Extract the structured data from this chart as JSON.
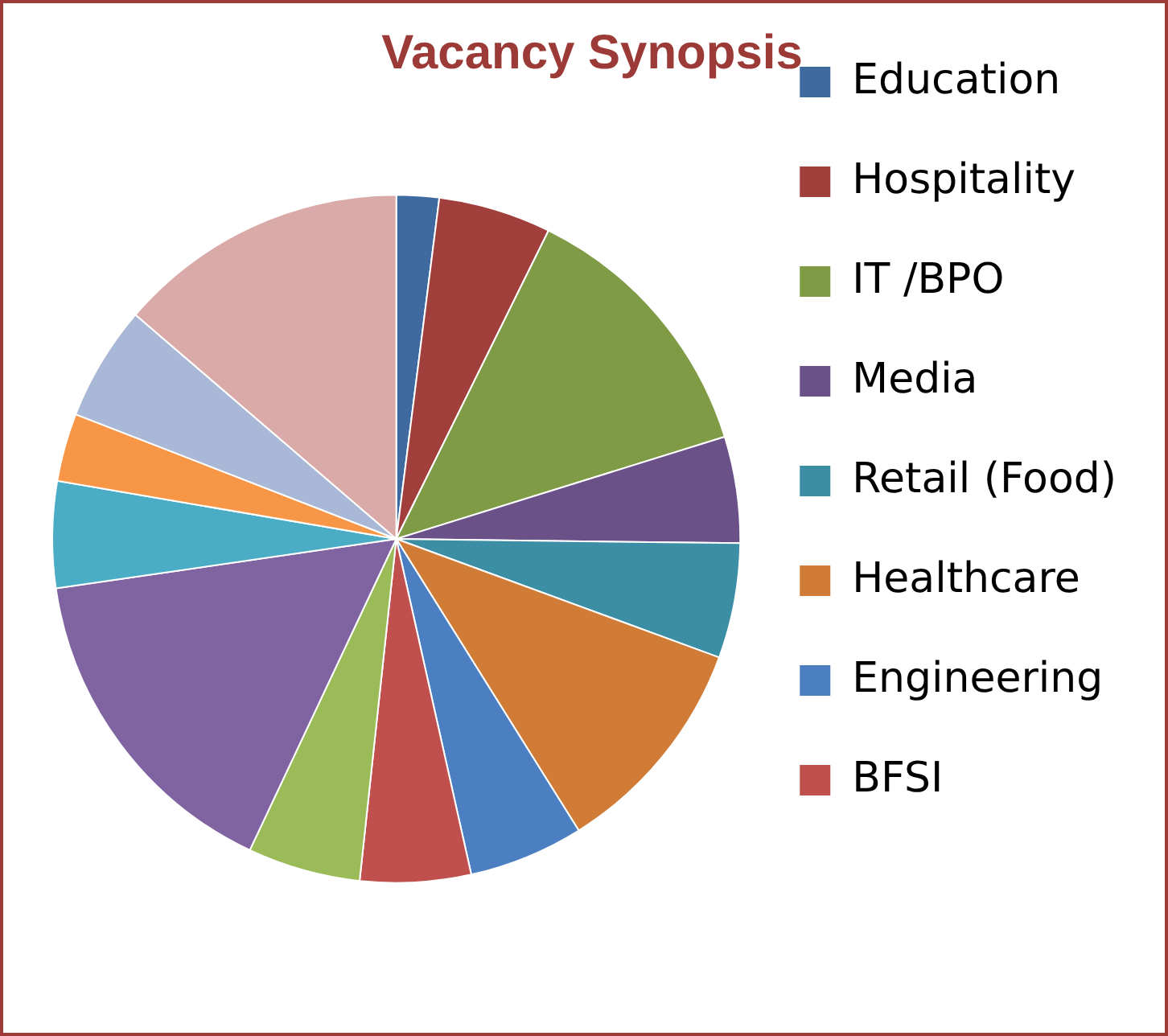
{
  "chart_data": {
    "type": "pie",
    "title": "Vacancy Synopsis",
    "categories": [
      "Education",
      "Hospitality",
      "IT /BPO",
      "Media",
      "Retail (Food)",
      "Healthcare",
      "Engineering",
      "BFSI",
      null,
      null,
      null,
      null,
      null,
      null
    ],
    "values": [
      2,
      5.3,
      12.9,
      5,
      5.4,
      10.5,
      5.4,
      5.2,
      5.3,
      15.7,
      5,
      3.2,
      5.4,
      13.7
    ],
    "colors": [
      "#3e6aa0",
      "#a03f3c",
      "#7f9b46",
      "#6a5289",
      "#3b8ea4",
      "#d07b36",
      "#4c7fc1",
      "#c0504d",
      "#9bbb59",
      "#8064a2",
      "#4bacc6",
      "#f79646",
      "#a9b8d6",
      "#d9aaa8"
    ],
    "legend": "right"
  }
}
